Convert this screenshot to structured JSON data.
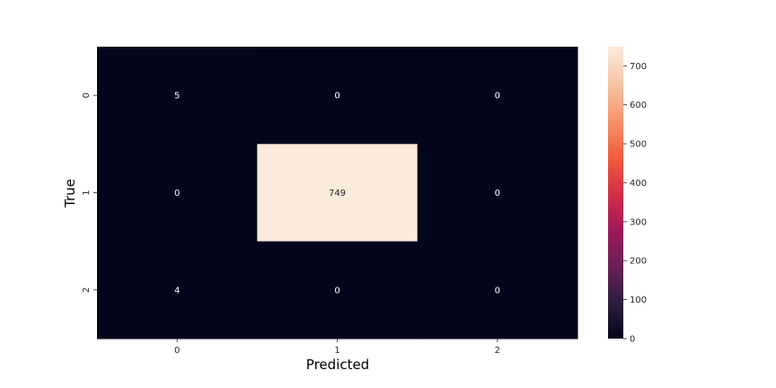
{
  "chart_data": {
    "type": "heatmap",
    "title": "",
    "xlabel": "Predicted",
    "ylabel": "True",
    "x_categories": [
      "0",
      "1",
      "2"
    ],
    "y_categories": [
      "0",
      "1",
      "2"
    ],
    "values": [
      [
        5,
        0,
        0
      ],
      [
        0,
        749,
        0
      ],
      [
        4,
        0,
        0
      ]
    ],
    "colorscale": "rocket",
    "colorbar": {
      "min": 0,
      "max": 749,
      "ticks": [
        "0",
        "100",
        "200",
        "300",
        "400",
        "500",
        "600",
        "700"
      ]
    }
  }
}
